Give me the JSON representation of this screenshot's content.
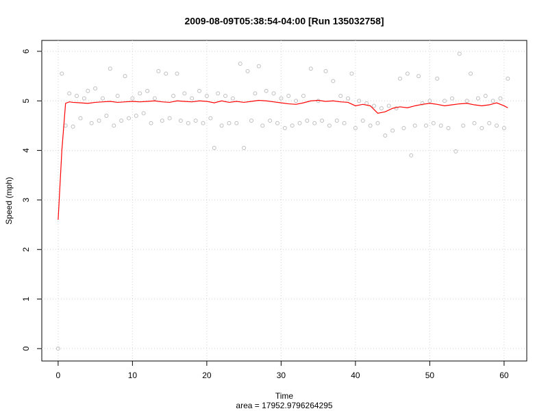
{
  "chart_data": {
    "type": "scatter",
    "title": "2009-08-09T05:38:54-04:00 [Run 135032758]",
    "x_label": "Time",
    "y_label": "Speed (mph)",
    "subtitle": "area = 17952.9796264295",
    "xlim": [
      -2.2,
      63.05
    ],
    "ylim": [
      -0.25,
      6.22
    ],
    "xticks": [
      0,
      10,
      20,
      30,
      40,
      50,
      60
    ],
    "yticks": [
      0,
      1,
      2,
      3,
      4,
      5,
      6
    ],
    "grid": true,
    "series": [
      {
        "style": "points",
        "color": "#bebebe",
        "x": [
          0,
          0.5,
          1,
          1.5,
          2,
          2.5,
          3,
          3.5,
          4,
          4.5,
          5,
          5.5,
          6,
          6.5,
          7,
          7.5,
          8,
          8.5,
          9,
          9.5,
          10,
          10.5,
          11,
          11.5,
          12,
          12.5,
          13,
          13.5,
          14,
          14.5,
          15,
          15.5,
          16,
          16.5,
          17,
          17.5,
          18,
          18.5,
          19,
          19.5,
          20,
          20.5,
          21,
          21.5,
          22,
          22.5,
          23,
          23.5,
          24,
          24.5,
          25,
          25.5,
          26,
          26.5,
          27,
          27.5,
          28,
          28.5,
          29,
          29.5,
          30,
          30.5,
          31,
          31.5,
          32,
          32.5,
          33,
          33.5,
          34,
          34.5,
          35,
          35.5,
          36,
          36.5,
          37,
          37.5,
          38,
          38.5,
          39,
          39.5,
          40,
          40.5,
          41,
          41.5,
          42,
          42.5,
          43,
          43.5,
          44,
          44.5,
          45,
          45.5,
          46,
          46.5,
          47,
          47.5,
          48,
          48.5,
          49,
          49.5,
          50,
          50.5,
          51,
          51.5,
          52,
          52.5,
          53,
          53.5,
          54,
          54.5,
          55,
          55.5,
          56,
          56.5,
          57,
          57.5,
          58,
          58.5,
          59,
          59.5,
          60,
          60.5
        ],
        "values": [
          0,
          5.55,
          4.5,
          5.15,
          4.48,
          5.1,
          4.65,
          5.05,
          5.2,
          4.55,
          5.25,
          4.6,
          5.05,
          4.7,
          5.65,
          4.5,
          5.1,
          4.6,
          5.5,
          4.65,
          5.05,
          4.7,
          5.15,
          4.75,
          5.2,
          4.55,
          5.05,
          5.6,
          4.6,
          5.55,
          4.65,
          5.1,
          5.55,
          4.6,
          5.15,
          4.55,
          5.05,
          4.6,
          5.2,
          4.55,
          5.1,
          4.65,
          4.05,
          5.15,
          4.5,
          5.1,
          4.55,
          5.05,
          4.55,
          5.75,
          4.05,
          5.6,
          4.6,
          5.15,
          5.7,
          4.5,
          5.2,
          4.6,
          5.15,
          4.55,
          5.05,
          4.45,
          5.1,
          4.5,
          5.0,
          4.55,
          5.1,
          4.6,
          5.65,
          4.55,
          5.0,
          4.6,
          5.6,
          4.5,
          5.4,
          4.6,
          5.1,
          4.55,
          5.05,
          5.55,
          4.45,
          5.0,
          4.6,
          4.95,
          4.5,
          4.9,
          4.55,
          4.85,
          4.3,
          4.9,
          4.4,
          4.85,
          5.45,
          4.45,
          5.55,
          3.9,
          4.5,
          5.5,
          4.95,
          4.5,
          5.0,
          4.55,
          5.45,
          4.5,
          5.0,
          4.45,
          5.05,
          3.98,
          5.95,
          4.5,
          5.0,
          5.55,
          4.55,
          5.05,
          4.45,
          5.1,
          4.55,
          5.0,
          4.5,
          5.05,
          4.45,
          5.45
        ]
      },
      {
        "style": "line",
        "color": "#ff0000",
        "x": [
          0,
          0.5,
          1,
          1.5,
          2,
          3,
          4,
          5,
          6,
          7,
          8,
          9,
          10,
          11,
          12,
          13,
          14,
          15,
          16,
          17,
          18,
          19,
          20,
          21,
          22,
          23,
          24,
          25,
          26,
          27,
          28,
          29,
          30,
          31,
          32,
          33,
          34,
          35,
          36,
          37,
          38,
          39,
          40,
          41,
          42,
          43,
          44,
          45,
          46,
          47,
          48,
          49,
          50,
          51,
          52,
          53,
          54,
          55,
          56,
          57,
          58,
          59,
          60,
          60.5
        ],
        "values": [
          2.6,
          4.0,
          4.95,
          4.98,
          4.97,
          4.96,
          4.95,
          4.97,
          4.98,
          4.99,
          4.97,
          4.98,
          4.99,
          4.98,
          4.99,
          5.0,
          4.98,
          4.97,
          5.0,
          4.99,
          4.98,
          5.0,
          4.99,
          4.96,
          5.0,
          4.97,
          4.99,
          4.97,
          4.99,
          5.01,
          5.0,
          4.98,
          4.96,
          4.94,
          4.93,
          4.96,
          5.0,
          5.01,
          4.99,
          5.0,
          4.98,
          4.97,
          4.9,
          4.93,
          4.9,
          4.75,
          4.78,
          4.85,
          4.88,
          4.86,
          4.9,
          4.93,
          4.95,
          4.93,
          4.9,
          4.92,
          4.94,
          4.95,
          4.92,
          4.9,
          4.92,
          4.96,
          4.9,
          4.86
        ]
      }
    ]
  }
}
